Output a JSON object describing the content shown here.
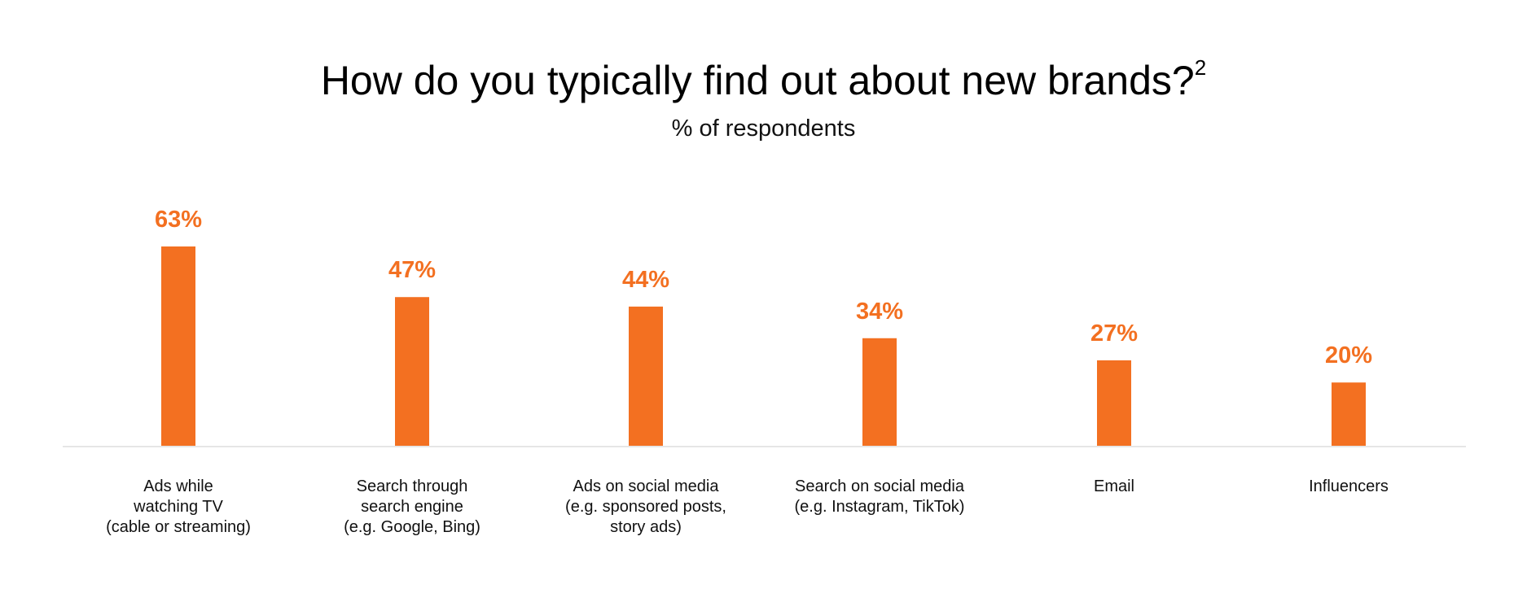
{
  "chart_data": {
    "type": "bar",
    "title": "How do you typically find out about new brands?",
    "title_superscript": "2",
    "subtitle": "% of respondents",
    "categories": [
      [
        "Ads while",
        "watching TV",
        "(cable or streaming)"
      ],
      [
        "Search through",
        "search engine",
        "(e.g. Google, Bing)"
      ],
      [
        "Ads on social media",
        "(e.g. sponsored posts,",
        "story ads)"
      ],
      [
        "Search on social media",
        "(e.g. Instagram, TikTok)"
      ],
      [
        "Email"
      ],
      [
        "Influencers"
      ]
    ],
    "values": [
      63,
      47,
      44,
      34,
      27,
      20
    ],
    "value_labels": [
      "63%",
      "47%",
      "44%",
      "34%",
      "27%",
      "20%"
    ],
    "xlabel": "",
    "ylabel": "",
    "ylim": [
      0,
      63
    ],
    "grid": false,
    "colors": {
      "bar": "#F37021",
      "axis": "#E6E6E6"
    }
  }
}
